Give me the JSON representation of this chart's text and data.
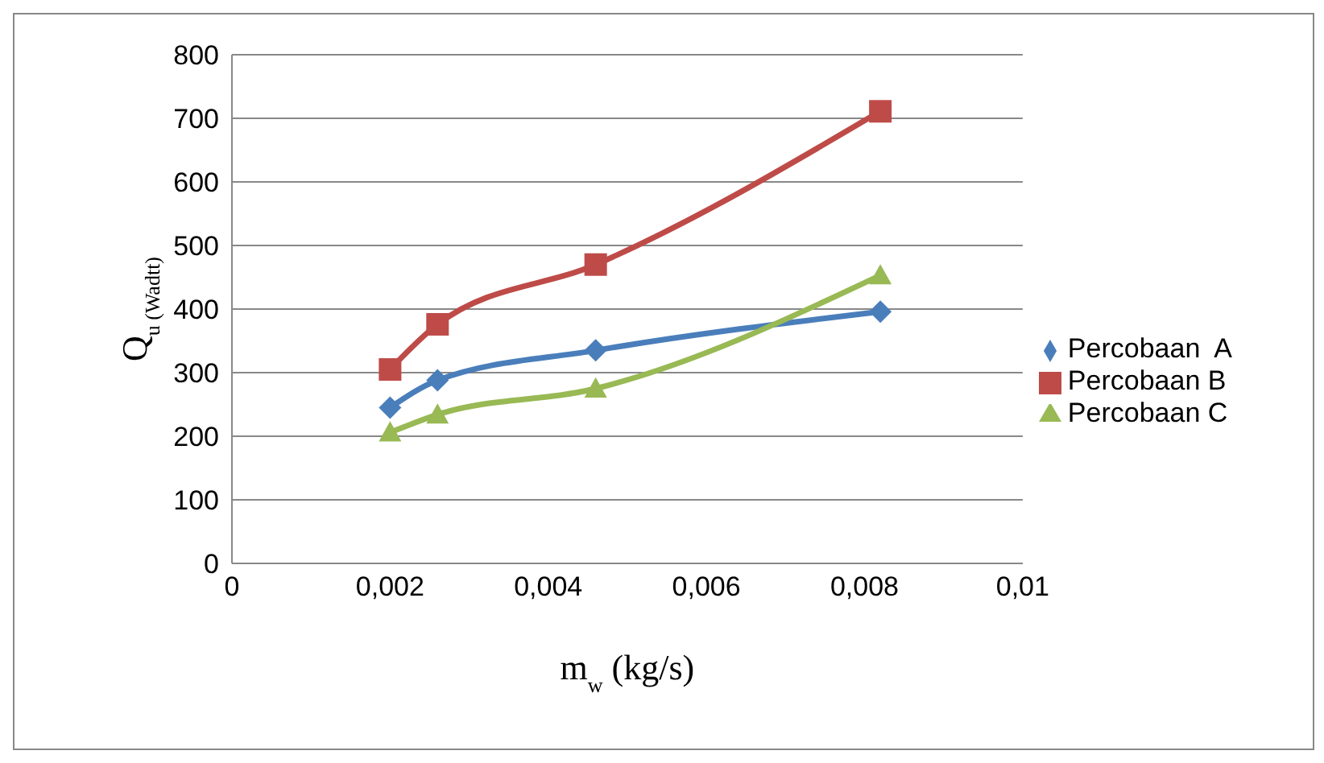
{
  "chart_data": {
    "type": "line",
    "xlabel": "m$_{w}$ (kg/s)",
    "ylabel": "Q$_{u (Wadtt)}$",
    "x": [
      0.002,
      0.0026,
      0.0046,
      0.0082
    ],
    "series": [
      {
        "name": "Percobaan  A",
        "color": "#4a7ebb",
        "marker": "diamond",
        "values": [
          245,
          288,
          335,
          396
        ]
      },
      {
        "name": "Percobaan B",
        "color": "#be4b48",
        "marker": "square",
        "values": [
          305,
          376,
          470,
          711
        ]
      },
      {
        "name": "Percobaan C",
        "color": "#98b954",
        "marker": "triangle",
        "values": [
          206,
          234,
          275,
          453
        ]
      }
    ],
    "xlim": [
      0,
      0.01
    ],
    "xticks": [
      {
        "value": 0,
        "label": "0"
      },
      {
        "value": 0.002,
        "label": "0,002"
      },
      {
        "value": 0.004,
        "label": "0,004"
      },
      {
        "value": 0.006,
        "label": "0,006"
      },
      {
        "value": 0.008,
        "label": "0,008"
      },
      {
        "value": 0.01,
        "label": "0,01"
      }
    ],
    "ylim": [
      0,
      800
    ],
    "yticks": [
      0,
      100,
      200,
      300,
      400,
      500,
      600,
      700,
      800
    ],
    "grid": "y",
    "legend": "right",
    "line_style": "solid"
  }
}
